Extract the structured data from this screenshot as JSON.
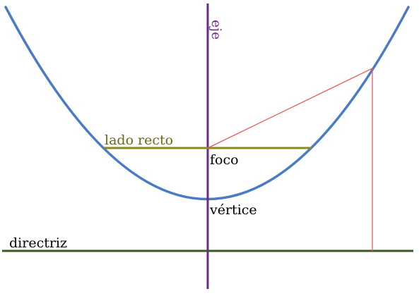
{
  "labels": {
    "axis": "eje",
    "latus_rectum": "lado recto",
    "focus": "foco",
    "vertex": "vértice",
    "directrix": "directriz"
  },
  "colors": {
    "parabola": "#4a7cc4",
    "axis": "#6a2a8c",
    "latus_rectum": "#8a8a1e",
    "directrix": "#3a5a22",
    "construction": "#e85a5a",
    "text": "#000000",
    "latus_label": "#6a6a1a"
  }
}
